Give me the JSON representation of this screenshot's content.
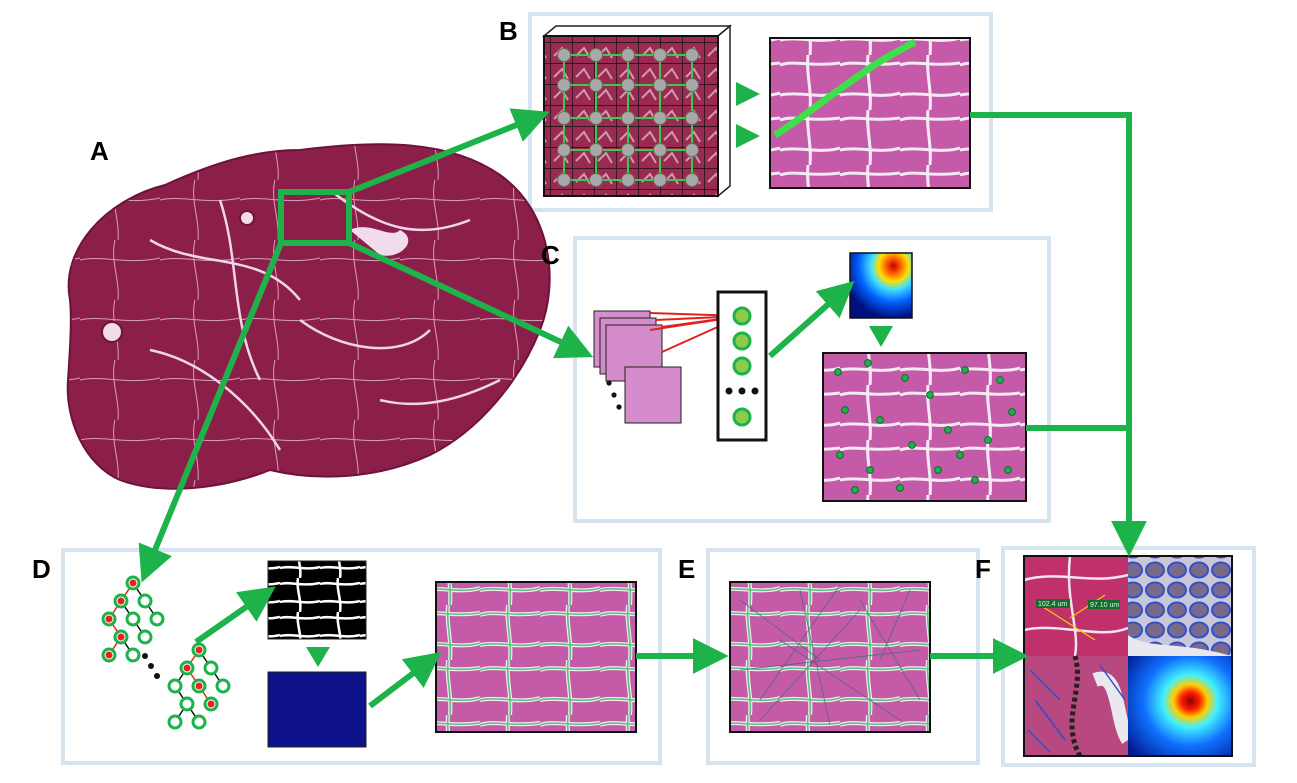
{
  "panels": {
    "A": {
      "label": "A"
    },
    "B": {
      "label": "B"
    },
    "C": {
      "label": "C"
    },
    "D": {
      "label": "D"
    },
    "E": {
      "label": "E"
    },
    "F": {
      "label": "F",
      "scale_1": "102.4 um",
      "scale_2": "97.10 um"
    }
  },
  "colors": {
    "arrow": "#1db34a",
    "panel_border": "#d6e3f0",
    "tissue": "#8c1f4a",
    "tissue_light": "#b94f82",
    "fiber": "#c45aa8",
    "fiber_edge": "#f2e6f2",
    "node_gray": "#a8a8a8",
    "node_green": "#8ccc4a",
    "node_red": "#e8231e",
    "heat_blue": "#1030d0"
  }
}
